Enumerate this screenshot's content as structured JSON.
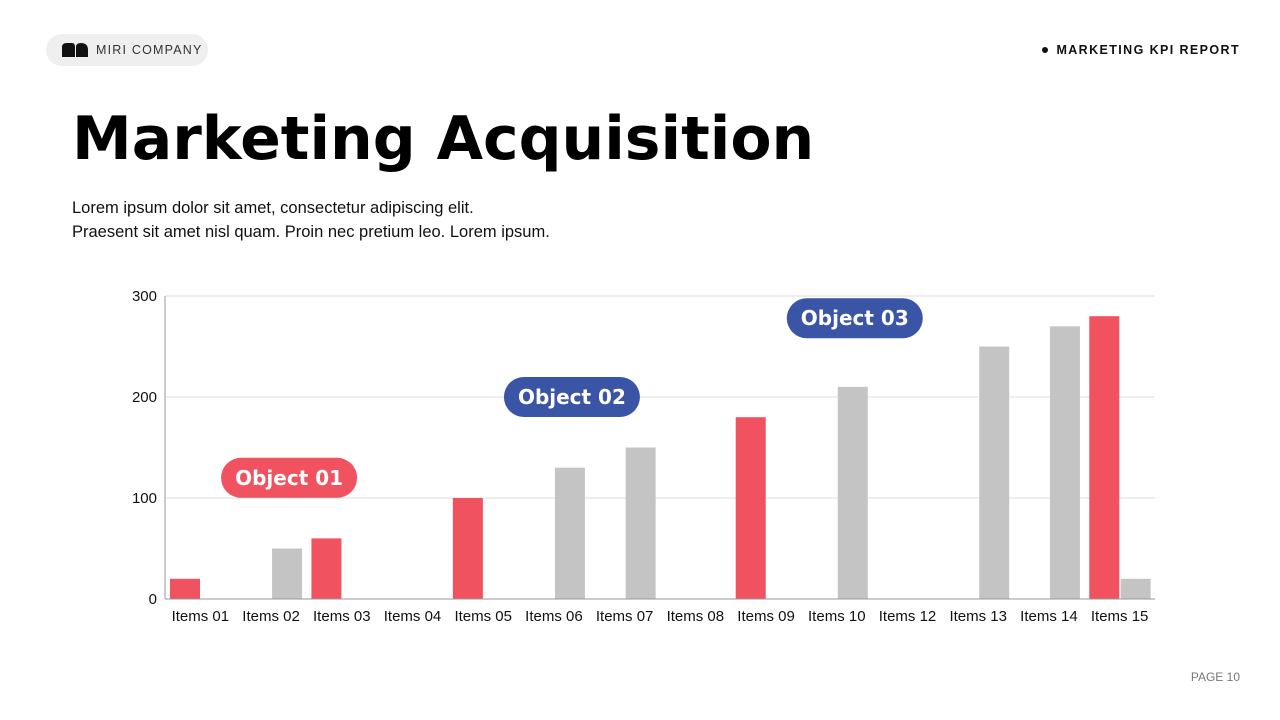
{
  "header": {
    "brand": "MIRI COMPANY",
    "report": "MARKETING KPI REPORT"
  },
  "title": "Marketing Acquisition",
  "subtitle": [
    "Lorem ipsum dolor sit amet, consectetur adipiscing elit.",
    "Praesent sit amet nisl quam. Proin nec pretium leo. Lorem ipsum."
  ],
  "footer": {
    "page": "PAGE 10"
  },
  "colors": {
    "red": "#F0525F",
    "gray": "#C4C4C4",
    "blue": "#3A54A6"
  },
  "chart_data": {
    "type": "bar",
    "categories": [
      "Items 01",
      "Items 02",
      "Items 03",
      "Items 04",
      "Items 05",
      "Items 06",
      "Items 07",
      "Items 08",
      "Items 09",
      "Items 10",
      "Items 12",
      "Items 13",
      "Items 14",
      "Items 15"
    ],
    "series": [
      {
        "color": "#F0525F",
        "values": [
          20,
          0,
          60,
          0,
          100,
          0,
          0,
          0,
          180,
          0,
          0,
          0,
          0,
          280
        ]
      },
      {
        "color": "#C4C4C4",
        "values": [
          0,
          50,
          0,
          0,
          0,
          130,
          150,
          0,
          0,
          210,
          0,
          250,
          270,
          20
        ]
      }
    ],
    "ylim": [
      0,
      300
    ],
    "yticks": [
      0,
      100,
      200,
      300
    ],
    "grid": true,
    "annotations": [
      {
        "text": "Object 01",
        "color": "#F0525F",
        "category": "Items 02",
        "y": 120
      },
      {
        "text": "Object 02",
        "color": "#3A54A6",
        "category": "Items 06",
        "y": 200
      },
      {
        "text": "Object 03",
        "color": "#3A54A6",
        "category": "Items 10",
        "y": 278
      }
    ]
  }
}
